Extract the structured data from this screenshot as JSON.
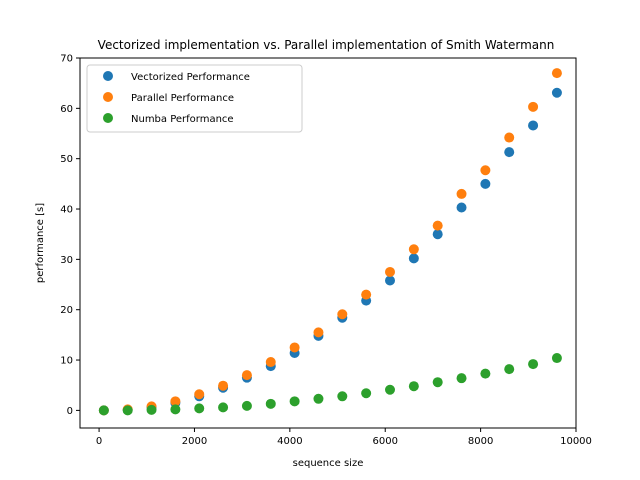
{
  "chart_data": {
    "type": "scatter",
    "title": "Vectorized implementation vs. Parallel implementation of Smith Watermann",
    "xlabel": "sequence size",
    "ylabel": "performance [s]",
    "xlim": [
      -400,
      10000
    ],
    "ylim": [
      -3.5,
      70
    ],
    "xticks": [
      0,
      2000,
      4000,
      6000,
      8000,
      10000
    ],
    "yticks": [
      0,
      10,
      20,
      30,
      40,
      50,
      60,
      70
    ],
    "grid": false,
    "legend_position": "upper-left",
    "x": [
      100,
      600,
      1100,
      1600,
      2100,
      2600,
      3100,
      3600,
      4100,
      4600,
      5100,
      5600,
      6100,
      6600,
      7100,
      7600,
      8100,
      8600,
      9100,
      9600
    ],
    "series": [
      {
        "name": "Vectorized Performance",
        "color": "#1f77b4",
        "values": [
          0.0,
          0.1,
          0.6,
          1.5,
          2.8,
          4.5,
          6.5,
          8.8,
          11.4,
          14.8,
          18.4,
          21.8,
          25.8,
          30.2,
          35.0,
          40.3,
          45.0,
          51.3,
          56.6,
          63.1
        ]
      },
      {
        "name": "Parallel Performance",
        "color": "#ff7f0e",
        "values": [
          0.0,
          0.2,
          0.8,
          1.8,
          3.2,
          4.9,
          7.0,
          9.6,
          12.5,
          15.5,
          19.1,
          23.0,
          27.5,
          32.0,
          36.7,
          43.0,
          47.7,
          54.2,
          60.3,
          67.0
        ]
      },
      {
        "name": "Numba Performance",
        "color": "#2ca02c",
        "values": [
          0.0,
          0.0,
          0.1,
          0.2,
          0.4,
          0.6,
          0.9,
          1.3,
          1.8,
          2.3,
          2.8,
          3.4,
          4.1,
          4.8,
          5.6,
          6.4,
          7.3,
          8.2,
          9.2,
          10.4
        ]
      }
    ]
  }
}
